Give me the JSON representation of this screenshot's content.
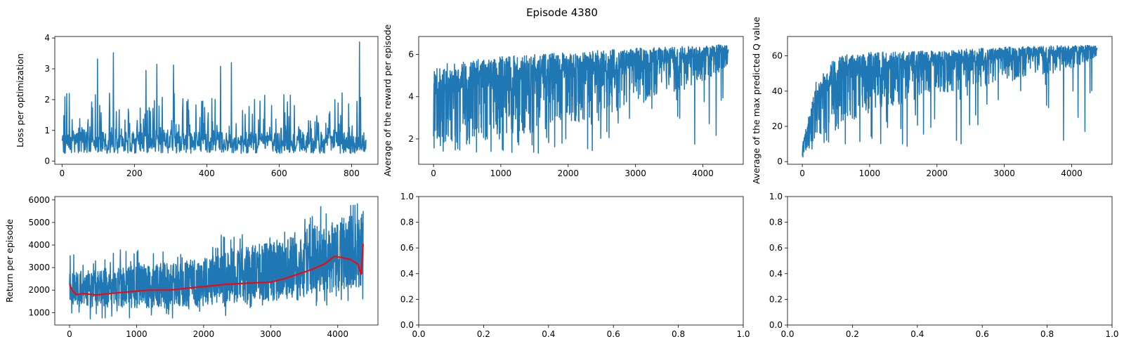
{
  "figure": {
    "title": "Episode 4380",
    "series_color": "#1f77b4",
    "smooth_color": "#ff0000",
    "background": "#ffffff"
  },
  "chart_data": [
    {
      "id": "loss",
      "type": "line",
      "title": "",
      "xlabel": "",
      "ylabel": "Loss per optimization",
      "xlim": [
        -20,
        873
      ],
      "ylim": [
        -0.1,
        4.05
      ],
      "xticks": [
        0,
        200,
        400,
        600,
        800
      ],
      "yticks": [
        0,
        1,
        2,
        3,
        4
      ],
      "n_points": 841,
      "series_summary": {
        "baseline": 0.55,
        "min": 0.1,
        "max": 3.87,
        "spike_count": 120
      },
      "notable_points": [
        [
          98,
          3.32
        ],
        [
          142,
          3.52
        ],
        [
          232,
          2.95
        ],
        [
          262,
          3.15
        ],
        [
          308,
          3.12
        ],
        [
          438,
          3.08
        ],
        [
          468,
          3.2
        ],
        [
          822,
          3.87
        ]
      ]
    },
    {
      "id": "reward",
      "type": "line",
      "title": "",
      "xlabel": "",
      "ylabel": "Average of the reward per episode",
      "xlim": [
        -220,
        4600
      ],
      "ylim": [
        0.8,
        6.85
      ],
      "xticks": [
        0,
        1000,
        2000,
        3000,
        4000
      ],
      "yticks": [
        2,
        4,
        6
      ],
      "n_points": 4381,
      "series_summary": {
        "upper_envelope": [
          [
            0,
            5.5
          ],
          [
            1000,
            5.9
          ],
          [
            2000,
            6.1
          ],
          [
            3000,
            6.3
          ],
          [
            4000,
            6.4
          ],
          [
            4380,
            6.5
          ]
        ],
        "lower_envelope": [
          [
            0,
            1.5
          ],
          [
            1000,
            2.0
          ],
          [
            2000,
            2.6
          ],
          [
            3000,
            3.6
          ],
          [
            4000,
            4.6
          ],
          [
            4380,
            5.5
          ]
        ],
        "min": 1.05,
        "max": 6.6
      }
    },
    {
      "id": "qvalue",
      "type": "line",
      "title": "",
      "xlabel": "",
      "ylabel": "Average of the max predicted Q value",
      "xlim": [
        -220,
        4600
      ],
      "ylim": [
        -1.5,
        71
      ],
      "xticks": [
        0,
        1000,
        2000,
        3000,
        4000
      ],
      "yticks": [
        0,
        20,
        40,
        60
      ],
      "n_points": 4381,
      "series_summary": {
        "upper_envelope": [
          [
            0,
            10
          ],
          [
            200,
            45
          ],
          [
            500,
            60
          ],
          [
            1000,
            62
          ],
          [
            2000,
            63
          ],
          [
            3000,
            65
          ],
          [
            4000,
            66
          ],
          [
            4380,
            66
          ]
        ],
        "lower_envelope": [
          [
            0,
            2
          ],
          [
            200,
            12
          ],
          [
            500,
            18
          ],
          [
            1000,
            28
          ],
          [
            2000,
            38
          ],
          [
            3000,
            45
          ],
          [
            4000,
            52
          ],
          [
            4380,
            60
          ]
        ],
        "min": 2,
        "max": 68
      }
    },
    {
      "id": "return",
      "type": "line",
      "title": "",
      "xlabel": "",
      "ylabel": "Return per episode",
      "xlim": [
        -220,
        4600
      ],
      "ylim": [
        450,
        6150
      ],
      "xticks": [
        0,
        1000,
        2000,
        3000,
        4000
      ],
      "yticks": [
        1000,
        2000,
        3000,
        4000,
        5000,
        6000
      ],
      "n_points": 4381,
      "series_summary": {
        "min": 600,
        "max": 6050
      },
      "band_upper": [
        [
          0,
          2800
        ],
        [
          1000,
          3100
        ],
        [
          2000,
          3400
        ],
        [
          3000,
          4200
        ],
        [
          4000,
          5200
        ],
        [
          4380,
          5500
        ]
      ],
      "band_lower": [
        [
          0,
          1200
        ],
        [
          1000,
          1200
        ],
        [
          2000,
          1300
        ],
        [
          3000,
          1500
        ],
        [
          4000,
          1900
        ],
        [
          4380,
          2100
        ]
      ],
      "smoothed": [
        [
          0,
          2250
        ],
        [
          50,
          1950
        ],
        [
          100,
          1800
        ],
        [
          200,
          1850
        ],
        [
          400,
          1780
        ],
        [
          600,
          1850
        ],
        [
          800,
          1900
        ],
        [
          1000,
          1950
        ],
        [
          1200,
          2000
        ],
        [
          1500,
          2000
        ],
        [
          1800,
          2100
        ],
        [
          2000,
          2150
        ],
        [
          2300,
          2250
        ],
        [
          2600,
          2300
        ],
        [
          3000,
          2350
        ],
        [
          3200,
          2500
        ],
        [
          3400,
          2700
        ],
        [
          3600,
          2900
        ],
        [
          3800,
          3150
        ],
        [
          3950,
          3500
        ],
        [
          4050,
          3450
        ],
        [
          4200,
          3350
        ],
        [
          4300,
          3150
        ],
        [
          4350,
          2700
        ],
        [
          4380,
          4050
        ]
      ]
    },
    {
      "id": "empty1",
      "type": "line",
      "title": "",
      "xlabel": "",
      "ylabel": "",
      "xlim": [
        0,
        1
      ],
      "ylim": [
        0,
        1
      ],
      "xticks": [
        0.0,
        0.2,
        0.4,
        0.6,
        0.8,
        1.0
      ],
      "yticks": [
        0.0,
        0.2,
        0.4,
        0.6,
        0.8,
        1.0
      ],
      "empty": true
    },
    {
      "id": "empty2",
      "type": "line",
      "title": "",
      "xlabel": "",
      "ylabel": "",
      "xlim": [
        0,
        1
      ],
      "ylim": [
        0,
        1
      ],
      "xticks": [
        0.0,
        0.2,
        0.4,
        0.6,
        0.8,
        1.0
      ],
      "yticks": [
        0.0,
        0.2,
        0.4,
        0.6,
        0.8,
        1.0
      ],
      "empty": true
    }
  ]
}
